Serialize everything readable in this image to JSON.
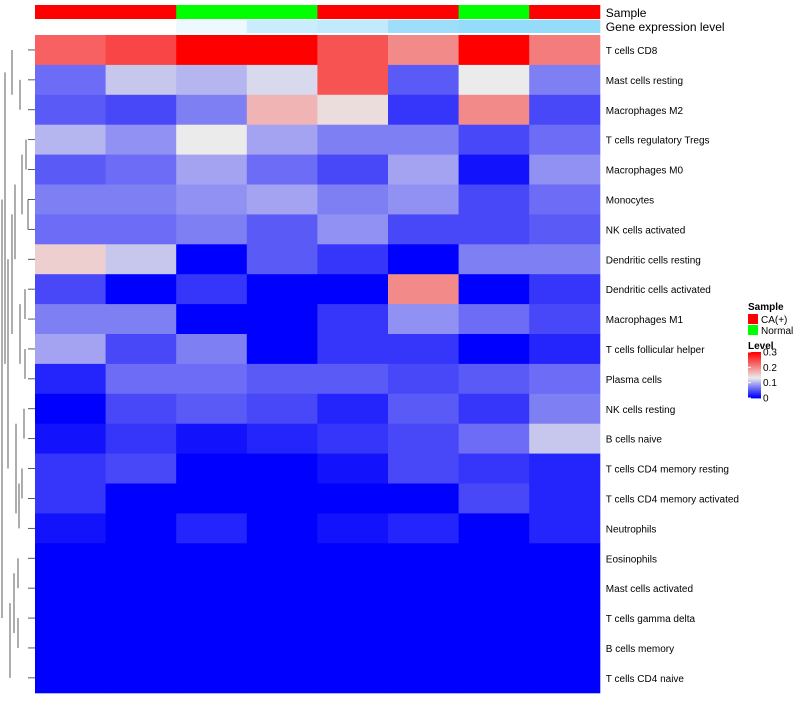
{
  "chart_data": {
    "type": "heatmap",
    "annotation_tracks": [
      "Sample",
      "Gene expression level"
    ],
    "sample_groups": [
      "CA(+)",
      "CA(+)",
      "Normal",
      "Normal",
      "CA(+)",
      "CA(+)",
      "Normal",
      "CA(+)"
    ],
    "expression_level": [
      0.0,
      0.0,
      0.1,
      0.3,
      0.35,
      0.55,
      0.6,
      0.6
    ],
    "rows": [
      "T cells CD8",
      "Mast cells resting",
      "Macrophages M2",
      "T cells regulatory  Tregs",
      "Macrophages M0",
      "Monocytes",
      "NK cells activated",
      "Dendritic cells resting",
      "Dendritic cells activated",
      "Macrophages M1",
      "T cells follicular helper",
      "Plasma cells",
      "NK cells resting",
      "B cells naive",
      "T cells CD4 memory resting",
      "T cells CD4 memory activated",
      "Neutrophils",
      "Eosinophils",
      "Mast cells activated",
      "T cells gamma delta",
      "B cells memory",
      "T cells CD4 naive"
    ],
    "values": [
      [
        0.23,
        0.25,
        0.3,
        0.3,
        0.24,
        0.2,
        0.3,
        0.21
      ],
      [
        0.06,
        0.11,
        0.1,
        0.12,
        0.24,
        0.05,
        0.13,
        0.07
      ],
      [
        0.05,
        0.04,
        0.07,
        0.17,
        0.14,
        0.03,
        0.2,
        0.04
      ],
      [
        0.1,
        0.08,
        0.13,
        0.09,
        0.07,
        0.07,
        0.04,
        0.06
      ],
      [
        0.05,
        0.06,
        0.09,
        0.06,
        0.04,
        0.09,
        0.01,
        0.08
      ],
      [
        0.07,
        0.07,
        0.08,
        0.09,
        0.07,
        0.08,
        0.04,
        0.06
      ],
      [
        0.06,
        0.06,
        0.07,
        0.05,
        0.08,
        0.04,
        0.04,
        0.05
      ],
      [
        0.15,
        0.11,
        0.0,
        0.05,
        0.03,
        0.0,
        0.07,
        0.07
      ],
      [
        0.04,
        0.0,
        0.03,
        0.0,
        0.0,
        0.2,
        0.0,
        0.03
      ],
      [
        0.07,
        0.07,
        0.0,
        0.0,
        0.03,
        0.08,
        0.06,
        0.04
      ],
      [
        0.09,
        0.04,
        0.07,
        0.0,
        0.03,
        0.03,
        0.0,
        0.02
      ],
      [
        0.02,
        0.06,
        0.06,
        0.05,
        0.05,
        0.04,
        0.05,
        0.06
      ],
      [
        0.0,
        0.04,
        0.05,
        0.04,
        0.02,
        0.05,
        0.03,
        0.07
      ],
      [
        0.01,
        0.03,
        0.01,
        0.02,
        0.03,
        0.04,
        0.06,
        0.11
      ],
      [
        0.03,
        0.04,
        0.0,
        0.0,
        0.01,
        0.04,
        0.03,
        0.02
      ],
      [
        0.03,
        0.0,
        0.0,
        0.0,
        0.0,
        0.0,
        0.04,
        0.02
      ],
      [
        0.01,
        0.0,
        0.02,
        0.0,
        0.01,
        0.02,
        0.0,
        0.02
      ],
      [
        0.0,
        0.0,
        0.0,
        0.0,
        0.0,
        0.0,
        0.0,
        0.0
      ],
      [
        0.0,
        0.0,
        0.0,
        0.0,
        0.0,
        0.0,
        0.0,
        0.0
      ],
      [
        0.0,
        0.0,
        0.0,
        0.0,
        0.0,
        0.0,
        0.0,
        0.0
      ],
      [
        0.0,
        0.0,
        0.0,
        0.0,
        0.0,
        0.0,
        0.0,
        0.0
      ],
      [
        0.0,
        0.0,
        0.0,
        0.0,
        0.0,
        0.0,
        0.0,
        0.0
      ]
    ],
    "color_scale": {
      "low": "#0000ff",
      "mid": "#ebebeb",
      "high": "#ff0000",
      "min": 0,
      "mid_value": 0.13,
      "max": 0.3
    },
    "sample_colors": {
      "CA(+)": "#ff0000",
      "Normal": "#00ff00"
    },
    "expression_color": {
      "low": "#ffffff",
      "high": "#4fc3f7"
    },
    "legend": {
      "sample_title": "Sample",
      "sample_entries": [
        "CA(+)",
        "Normal"
      ],
      "level_title": "Level",
      "level_ticks": [
        "0.3",
        "0.2",
        "0.1",
        "0"
      ],
      "level_tick_values": [
        0.3,
        0.2,
        0.1,
        0
      ]
    },
    "row_dendrogram": true,
    "legend_position": "right"
  }
}
